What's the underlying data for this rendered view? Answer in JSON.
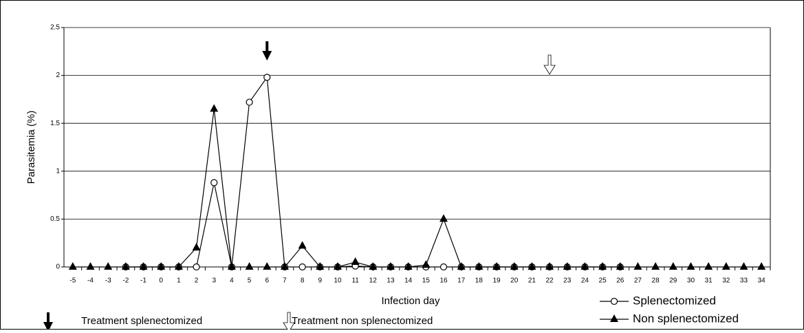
{
  "chart_data": {
    "type": "line",
    "y_label": "Parasitemia (%)",
    "x_label": "Infection day",
    "categories": [
      "-5",
      "-4",
      "-3",
      "-2",
      "-1",
      "0",
      "1",
      "2",
      "3",
      "4",
      "5",
      "6",
      "7",
      "8",
      "9",
      "10",
      "11",
      "12",
      "13",
      "14",
      "15",
      "16",
      "17",
      "18",
      "19",
      "20",
      "21",
      "22",
      "23",
      "24",
      "25",
      "26",
      "27",
      "28",
      "29",
      "30",
      "31",
      "32",
      "33",
      "34"
    ],
    "series": [
      {
        "name": "Splenectomized",
        "color": "#000000",
        "marker": "circle",
        "values": [
          null,
          null,
          null,
          0,
          0,
          0,
          0,
          0,
          0.88,
          0,
          1.72,
          1.98,
          0,
          0,
          0,
          0,
          0.01,
          0,
          0,
          0,
          0,
          0,
          0,
          0,
          0,
          0,
          0,
          0,
          0,
          0,
          0,
          0,
          null,
          null,
          null,
          null,
          null,
          null,
          null,
          null
        ]
      },
      {
        "name": "Non splenectomized",
        "color": "#000000",
        "marker": "triangle",
        "values": [
          0,
          0,
          0,
          0,
          0,
          0,
          0,
          0.2,
          1.65,
          0,
          0,
          0,
          0,
          0.22,
          0,
          0,
          0.05,
          0,
          0,
          0,
          0.02,
          0.5,
          0,
          0,
          0,
          0,
          0,
          0,
          0,
          0,
          0,
          0,
          0,
          0,
          0,
          0,
          0,
          0,
          0,
          0
        ]
      }
    ],
    "arrows": [
      {
        "label": "Treatment splenectomized",
        "day": "6",
        "style": "filled"
      },
      {
        "label": "Treatment non splenectomized",
        "day": "22",
        "style": "open"
      }
    ],
    "ylim": [
      0,
      2.5
    ],
    "yticks": [
      0,
      0.5,
      1,
      1.5,
      2,
      2.5
    ],
    "grid": true
  }
}
